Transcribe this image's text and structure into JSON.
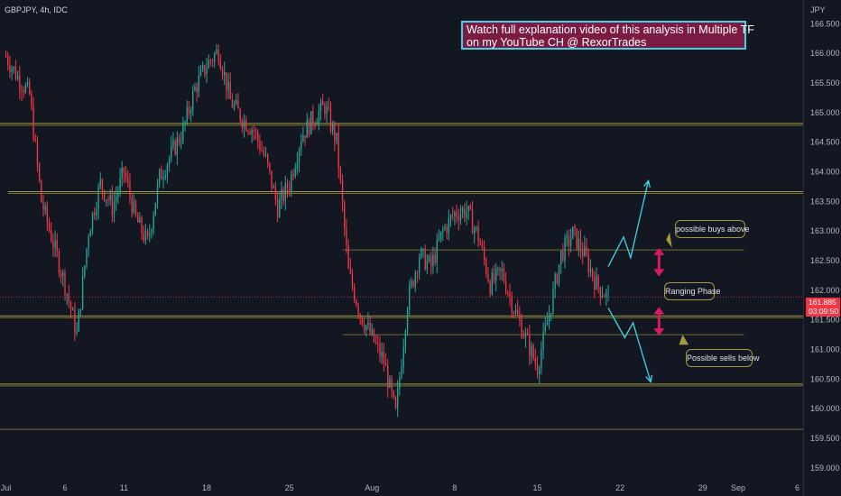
{
  "header": {
    "symbol": "GBPJPY, 4h, IDC",
    "currency": "JPY"
  },
  "banner": {
    "line1": "Watch full explanation video of this analysis in Multiple TF",
    "line2": "on my YouTube CH @ RexorTrades"
  },
  "callouts": {
    "buys": "possible buys above",
    "ranging": "Ranging Phase",
    "sells": "Possible sells below"
  },
  "last_price": {
    "price": "161.885",
    "countdown": "03:09:50"
  },
  "colors": {
    "bull": "#26a69a",
    "bear": "#f23645",
    "level": "#a39a3e",
    "arrow": "#3fd3e8",
    "range_arrow": "#d81b60",
    "background": "#131722"
  },
  "chart_data": {
    "type": "candlestick",
    "symbol": "GBPJPY",
    "timeframe": "4h",
    "source": "IDC",
    "y_axis": {
      "ticks": [
        "166.500",
        "166.000",
        "165.500",
        "165.000",
        "164.500",
        "164.000",
        "163.500",
        "163.000",
        "162.500",
        "162.000",
        "161.500",
        "161.000",
        "160.500",
        "160.000",
        "159.500",
        "159.000"
      ],
      "range": [
        158.8,
        166.9
      ]
    },
    "x_axis": {
      "labels": [
        "Jul",
        "6",
        "11",
        "18",
        "25",
        "Aug",
        "8",
        "15",
        "22",
        "29",
        "Sep",
        "6"
      ],
      "day_offsets": [
        0,
        5,
        10,
        17,
        24,
        31,
        38,
        45,
        52,
        59,
        62,
        67
      ],
      "range_days": [
        -0.5,
        67.5
      ]
    },
    "levels": [
      {
        "price": 164.8,
        "strong": true,
        "x_from_days": -0.5
      },
      {
        "price": 163.65,
        "strong": true,
        "x_from_days": 0.2
      },
      {
        "price": 162.68,
        "strong": false,
        "x_from_days": 28.5,
        "x_to_days": 62.5
      },
      {
        "price": 161.55,
        "strong": true,
        "x_from_days": -0.5
      },
      {
        "price": 161.25,
        "strong": false,
        "x_from_days": 28.5,
        "x_to_days": 62.5
      },
      {
        "price": 160.4,
        "strong": true,
        "x_from_days": -0.5
      },
      {
        "price": 159.65,
        "strong": false,
        "x_from_days": -0.5
      }
    ],
    "current_price": 161.885,
    "projection_up": [
      [
        51.0,
        162.4
      ],
      [
        52.3,
        162.9
      ],
      [
        52.9,
        162.55
      ],
      [
        54.4,
        163.85
      ]
    ],
    "projection_down": [
      [
        51.0,
        161.7
      ],
      [
        52.4,
        161.2
      ],
      [
        53.1,
        161.45
      ],
      [
        54.6,
        160.45
      ]
    ],
    "range_arrows": {
      "up_from": 162.25,
      "up_to": 162.7,
      "down_from": 161.7,
      "down_to": 161.25,
      "x_days": 55.3
    },
    "price_path": [
      [
        0,
        165.95
      ],
      [
        1,
        165.6
      ],
      [
        2,
        165.3
      ],
      [
        3,
        163.5
      ],
      [
        4,
        162.8
      ],
      [
        5,
        162.1
      ],
      [
        6,
        161.25
      ],
      [
        7,
        163.0
      ],
      [
        8,
        163.8
      ],
      [
        9,
        163.4
      ],
      [
        10,
        164.0
      ],
      [
        11,
        163.2
      ],
      [
        12,
        162.8
      ],
      [
        13,
        163.9
      ],
      [
        14,
        164.3
      ],
      [
        15,
        164.7
      ],
      [
        16,
        165.4
      ],
      [
        17,
        165.8
      ],
      [
        18,
        166.05
      ],
      [
        19,
        165.2
      ],
      [
        20,
        164.9
      ],
      [
        21,
        164.7
      ],
      [
        22,
        164.2
      ],
      [
        23,
        163.4
      ],
      [
        24,
        163.8
      ],
      [
        25,
        164.6
      ],
      [
        26,
        164.9
      ],
      [
        27,
        165.1
      ],
      [
        28,
        164.5
      ],
      [
        29,
        162.3
      ],
      [
        30,
        161.6
      ],
      [
        31,
        161.2
      ],
      [
        32,
        160.8
      ],
      [
        33,
        159.9
      ],
      [
        34,
        161.8
      ],
      [
        35,
        162.6
      ],
      [
        36,
        162.4
      ],
      [
        37,
        163.0
      ],
      [
        38,
        163.3
      ],
      [
        39,
        163.35
      ],
      [
        40,
        162.9
      ],
      [
        41,
        162.1
      ],
      [
        42,
        162.3
      ],
      [
        43,
        161.7
      ],
      [
        44,
        161.2
      ],
      [
        45,
        160.7
      ],
      [
        46,
        161.6
      ],
      [
        47,
        162.6
      ],
      [
        48,
        162.95
      ],
      [
        49,
        162.6
      ],
      [
        50,
        162.1
      ],
      [
        51,
        161.88
      ]
    ]
  }
}
